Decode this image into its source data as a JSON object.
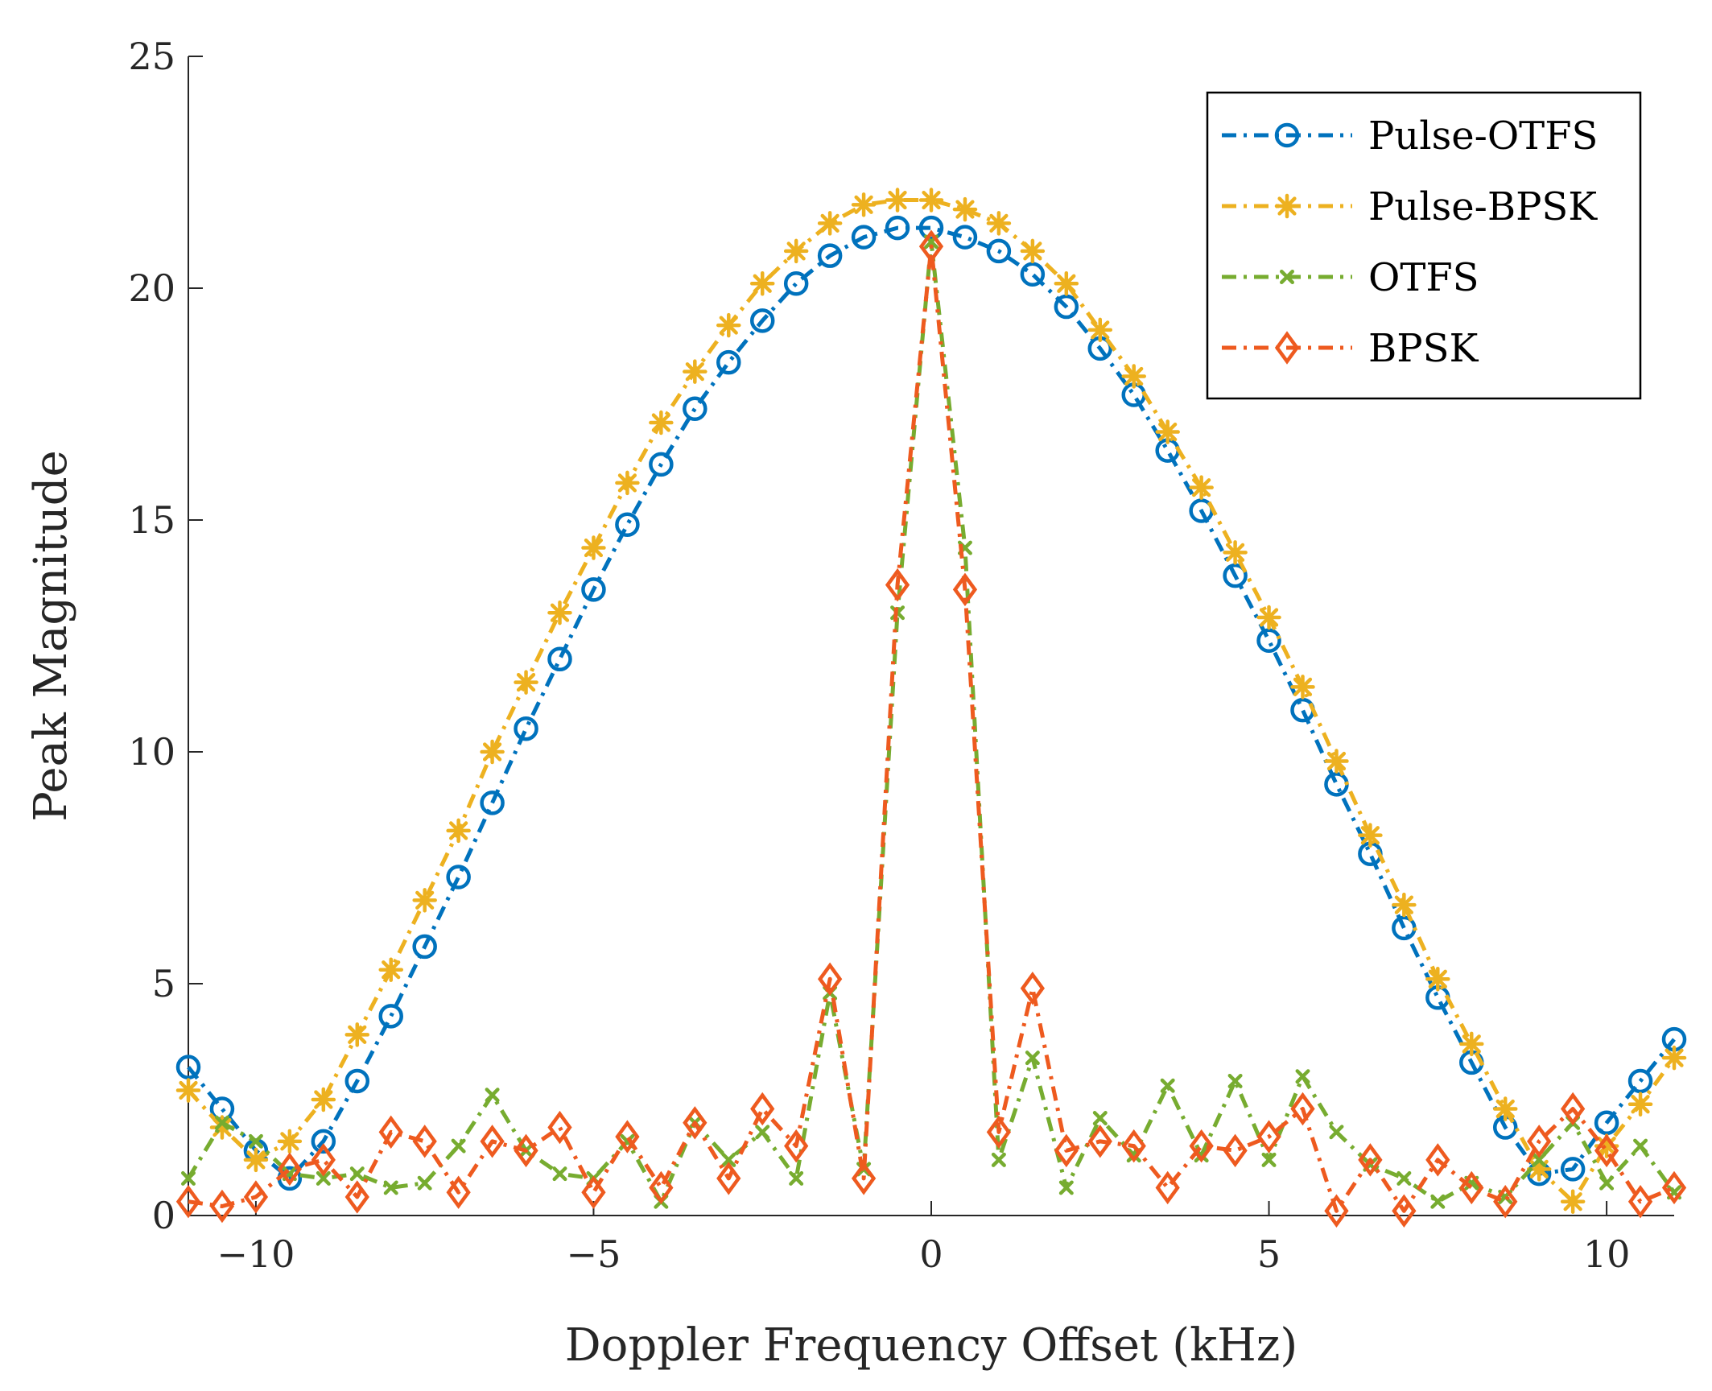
{
  "chart_data": {
    "type": "line",
    "title": "",
    "xlabel": "Doppler Frequency Offset (kHz)",
    "ylabel": "Peak Magnitude",
    "xlim": [
      -11,
      11
    ],
    "ylim": [
      0,
      25
    ],
    "xticks": [
      -10,
      -5,
      0,
      5,
      10
    ],
    "xtick_labels": [
      "−10",
      "−5",
      "0",
      "5",
      "10"
    ],
    "yticks": [
      0,
      5,
      10,
      15,
      20,
      25
    ],
    "ytick_labels": [
      "0",
      "5",
      "10",
      "15",
      "20",
      "25"
    ],
    "grid": false,
    "legend_position": "top-right",
    "x": [
      -11,
      -10.5,
      -10,
      -9.5,
      -9,
      -8.5,
      -8,
      -7.5,
      -7,
      -6.5,
      -6,
      -5.5,
      -5,
      -4.5,
      -4,
      -3.5,
      -3,
      -2.5,
      -2,
      -1.5,
      -1,
      -0.5,
      0,
      0.5,
      1,
      1.5,
      2,
      2.5,
      3,
      3.5,
      4,
      4.5,
      5,
      5.5,
      6,
      6.5,
      7,
      7.5,
      8,
      8.5,
      9,
      9.5,
      10,
      10.5,
      11
    ],
    "series": [
      {
        "name": "Pulse-OTFS",
        "color": "#0072BD",
        "marker": "circle",
        "values": [
          3.2,
          2.3,
          1.4,
          0.8,
          1.6,
          2.9,
          4.3,
          5.8,
          7.3,
          8.9,
          10.5,
          12.0,
          13.5,
          14.9,
          16.2,
          17.4,
          18.4,
          19.3,
          20.1,
          20.7,
          21.1,
          21.3,
          21.3,
          21.1,
          20.8,
          20.3,
          19.6,
          18.7,
          17.7,
          16.5,
          15.2,
          13.8,
          12.4,
          10.9,
          9.3,
          7.8,
          6.2,
          4.7,
          3.3,
          1.9,
          0.9,
          1.0,
          2.0,
          2.9,
          3.8
        ]
      },
      {
        "name": "Pulse-BPSK",
        "color": "#EDB120",
        "marker": "asterisk",
        "values": [
          2.7,
          1.9,
          1.2,
          1.6,
          2.5,
          3.9,
          5.3,
          6.8,
          8.3,
          10.0,
          11.5,
          13.0,
          14.4,
          15.8,
          17.1,
          18.2,
          19.2,
          20.1,
          20.8,
          21.4,
          21.8,
          21.9,
          21.9,
          21.7,
          21.4,
          20.8,
          20.1,
          19.1,
          18.1,
          16.9,
          15.7,
          14.3,
          12.9,
          11.4,
          9.8,
          8.2,
          6.7,
          5.1,
          3.7,
          2.3,
          1.0,
          0.3,
          1.5,
          2.4,
          3.4
        ]
      },
      {
        "name": "OTFS",
        "color": "#77AC30",
        "marker": "x",
        "values": [
          0.8,
          2.0,
          1.6,
          0.9,
          0.8,
          0.9,
          0.6,
          0.7,
          1.5,
          2.6,
          1.4,
          0.9,
          0.8,
          1.6,
          0.3,
          2.0,
          1.2,
          1.8,
          0.8,
          4.8,
          1.0,
          13.0,
          21.0,
          14.4,
          1.2,
          3.4,
          0.6,
          2.1,
          1.3,
          2.8,
          1.3,
          2.9,
          1.2,
          3.0,
          1.8,
          1.1,
          0.8,
          0.3,
          0.7,
          0.4,
          1.2,
          2.0,
          0.7,
          1.5,
          0.5
        ]
      },
      {
        "name": "BPSK",
        "color": "#EE5A1F",
        "marker": "diamond",
        "values": [
          0.3,
          0.2,
          0.4,
          1.0,
          1.2,
          0.4,
          1.8,
          1.6,
          0.5,
          1.6,
          1.4,
          1.9,
          0.5,
          1.7,
          0.6,
          2.0,
          0.8,
          2.3,
          1.5,
          5.1,
          0.8,
          13.6,
          20.9,
          13.5,
          1.8,
          4.9,
          1.4,
          1.6,
          1.5,
          0.6,
          1.5,
          1.4,
          1.7,
          2.3,
          0.1,
          1.2,
          0.1,
          1.2,
          0.6,
          0.3,
          1.6,
          2.3,
          1.4,
          0.3,
          0.6
        ]
      }
    ]
  }
}
